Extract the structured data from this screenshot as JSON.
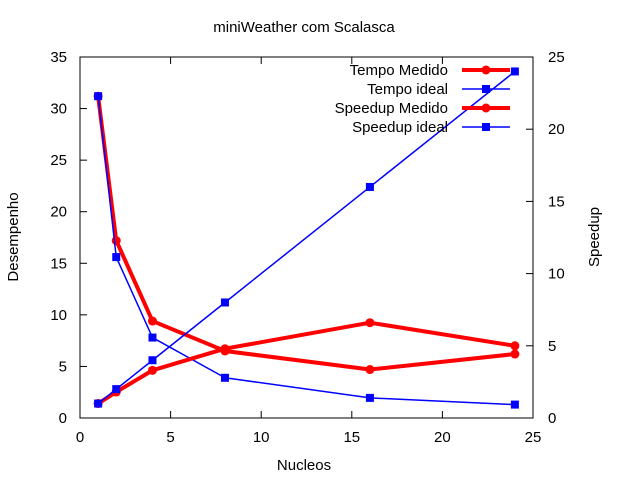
{
  "chart_data": {
    "type": "line",
    "title": "miniWeather com Scalasca",
    "xlabel": "Nucleos",
    "ylabel": "Desempenho",
    "y2label": "Speedup",
    "xlim": [
      0,
      25
    ],
    "ylim": [
      0,
      35
    ],
    "y2lim": [
      0,
      25
    ],
    "xticks": [
      0,
      5,
      10,
      15,
      20,
      25
    ],
    "yticks": [
      0,
      5,
      10,
      15,
      20,
      25,
      30,
      35
    ],
    "y2ticks": [
      0,
      5,
      10,
      15,
      20,
      25
    ],
    "grid": false,
    "legend": "top-right",
    "series": [
      {
        "name": "Tempo Medido",
        "axis": "y",
        "color": "#ff0000",
        "marker": "circle",
        "x": [
          1,
          2,
          4,
          8,
          16,
          24
        ],
        "values": [
          31.2,
          17.2,
          9.4,
          6.5,
          4.7,
          6.2
        ]
      },
      {
        "name": "Tempo ideal",
        "axis": "y",
        "color": "#0000ff",
        "marker": "square",
        "x": [
          1,
          2,
          4,
          8,
          16,
          24
        ],
        "values": [
          31.2,
          15.6,
          7.8,
          3.9,
          1.95,
          1.3
        ]
      },
      {
        "name": "Speedup Medido",
        "axis": "y2",
        "color": "#ff0000",
        "marker": "circle",
        "x": [
          1,
          2,
          4,
          8,
          16,
          24
        ],
        "values": [
          1.0,
          1.8,
          3.3,
          4.8,
          6.6,
          5.0
        ]
      },
      {
        "name": "Speedup ideal",
        "axis": "y2",
        "color": "#0000ff",
        "marker": "square",
        "x": [
          1,
          2,
          4,
          8,
          16,
          24
        ],
        "values": [
          1,
          2,
          4,
          8,
          16,
          24
        ]
      }
    ]
  }
}
